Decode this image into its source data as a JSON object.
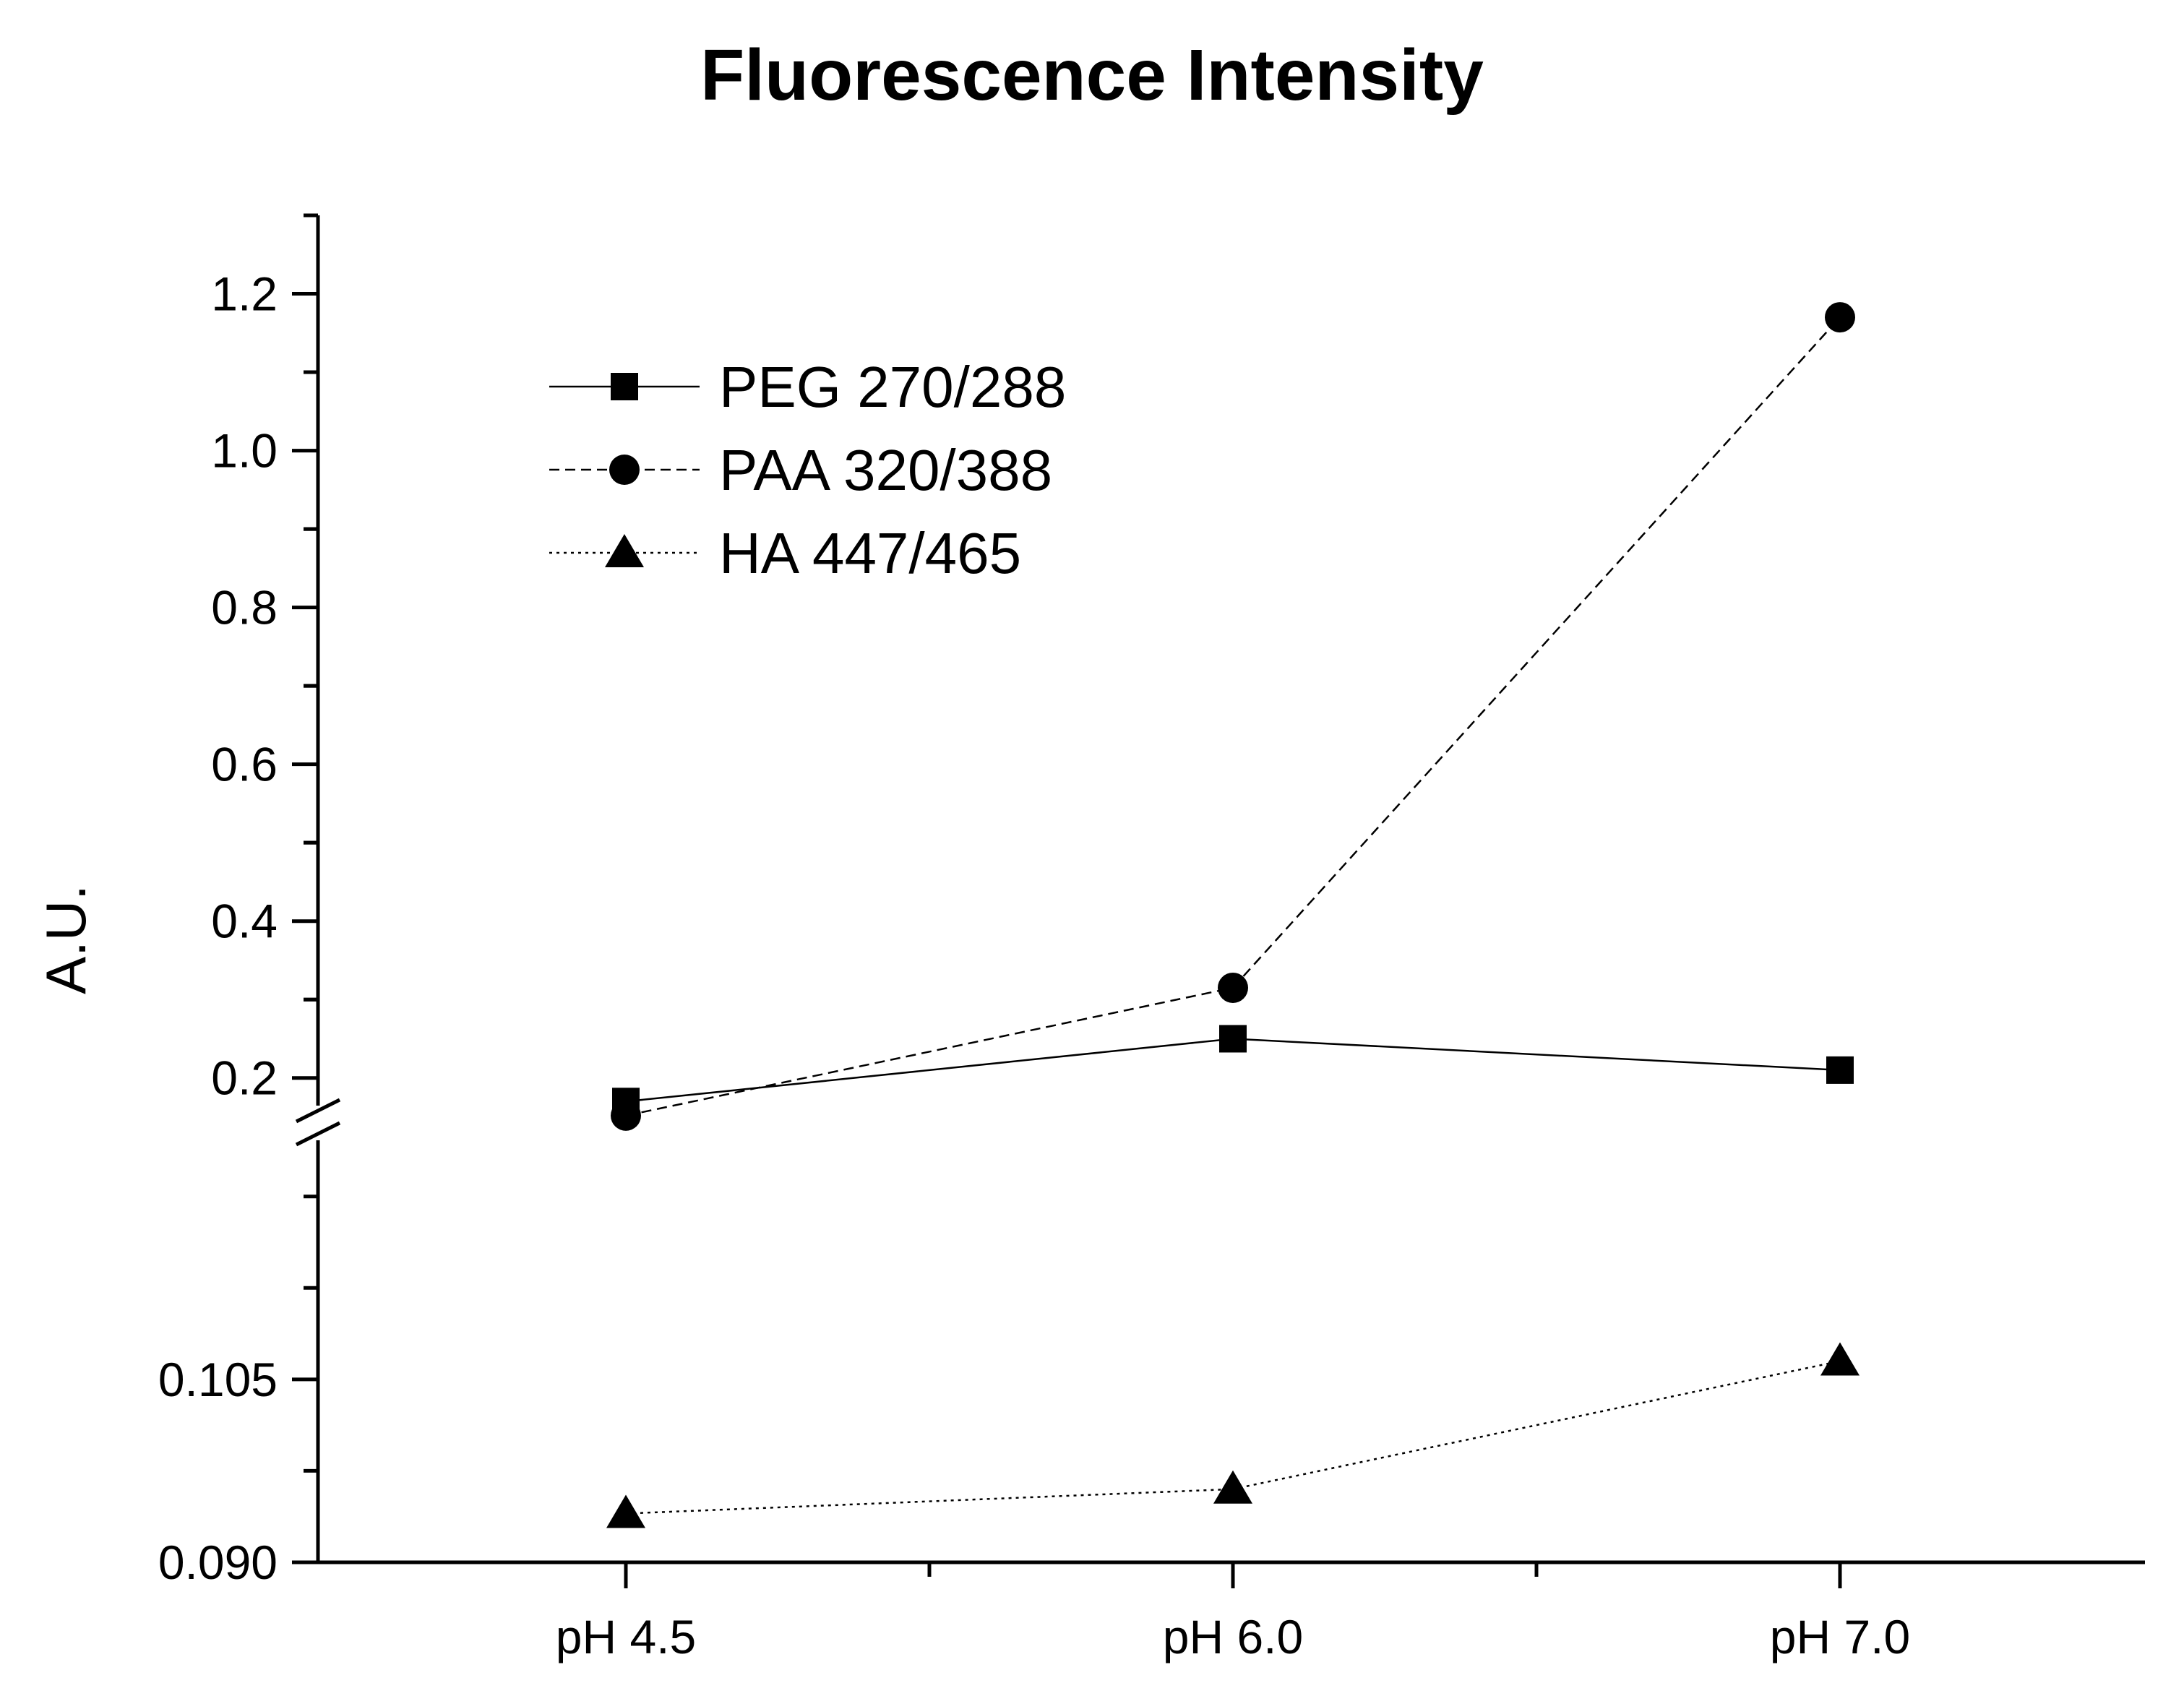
{
  "chart_data": {
    "type": "line",
    "title": "Fluorescence Intensity",
    "xlabel": "",
    "ylabel": "A.U.",
    "categories": [
      "pH 4.5",
      "pH 6.0",
      "pH 7.0"
    ],
    "y_axis_break": true,
    "y_upper_segment": {
      "ylim": [
        0.15,
        1.3
      ],
      "ticks": [
        0.2,
        0.4,
        0.6,
        0.8,
        1.0,
        1.2
      ],
      "tick_labels": [
        "0.2",
        "0.4",
        "0.6",
        "0.8",
        "1.0",
        "1.2"
      ]
    },
    "y_lower_segment": {
      "ylim": [
        0.09,
        0.1265
      ],
      "ticks": [
        0.09,
        0.105
      ],
      "tick_labels": [
        "0.090",
        "0.105"
      ]
    },
    "legend_position": "top-left",
    "grid": false,
    "series": [
      {
        "name": "PEG 270/288",
        "marker": "square",
        "line_style": "solid",
        "segment": "upper",
        "values": [
          0.17,
          0.25,
          0.21
        ]
      },
      {
        "name": "PAA 320/388",
        "marker": "circle",
        "line_style": "dashed",
        "segment": "upper",
        "values": [
          0.152,
          0.315,
          1.17
        ]
      },
      {
        "name": "HA 447/465",
        "marker": "triangle",
        "line_style": "dotted",
        "segment": "lower",
        "values": [
          0.094,
          0.096,
          0.1065
        ]
      }
    ]
  }
}
